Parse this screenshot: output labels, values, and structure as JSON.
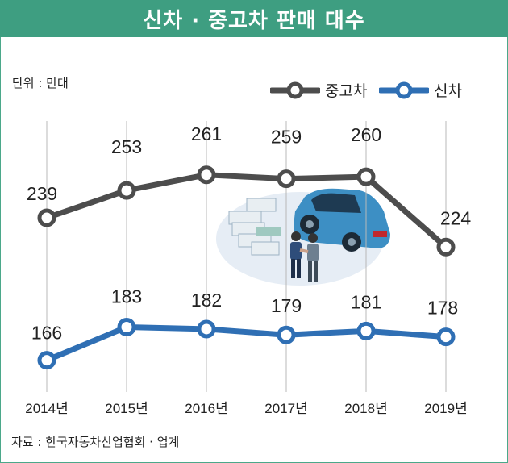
{
  "header": {
    "title": "신차 · 중고차 판매 대수"
  },
  "unit_label": "단위 : 만대",
  "source_label": "자료 : 한국자동차산업협회 · 업계",
  "colors": {
    "used": "#4d4d4d",
    "new": "#2f6fb4",
    "brand": "#3e9e81"
  },
  "chart_data": {
    "type": "line",
    "title": "신차 · 중고차 판매 대수",
    "ylabel": "단위 : 만대",
    "categories": [
      "2014년",
      "2015년",
      "2016년",
      "2017년",
      "2018년",
      "2019년"
    ],
    "series": [
      {
        "name": "중고차",
        "values": [
          239,
          253,
          261,
          259,
          260,
          224
        ]
      },
      {
        "name": "신차",
        "values": [
          166,
          183,
          182,
          179,
          181,
          178
        ]
      }
    ],
    "legend_position": "top-right"
  }
}
